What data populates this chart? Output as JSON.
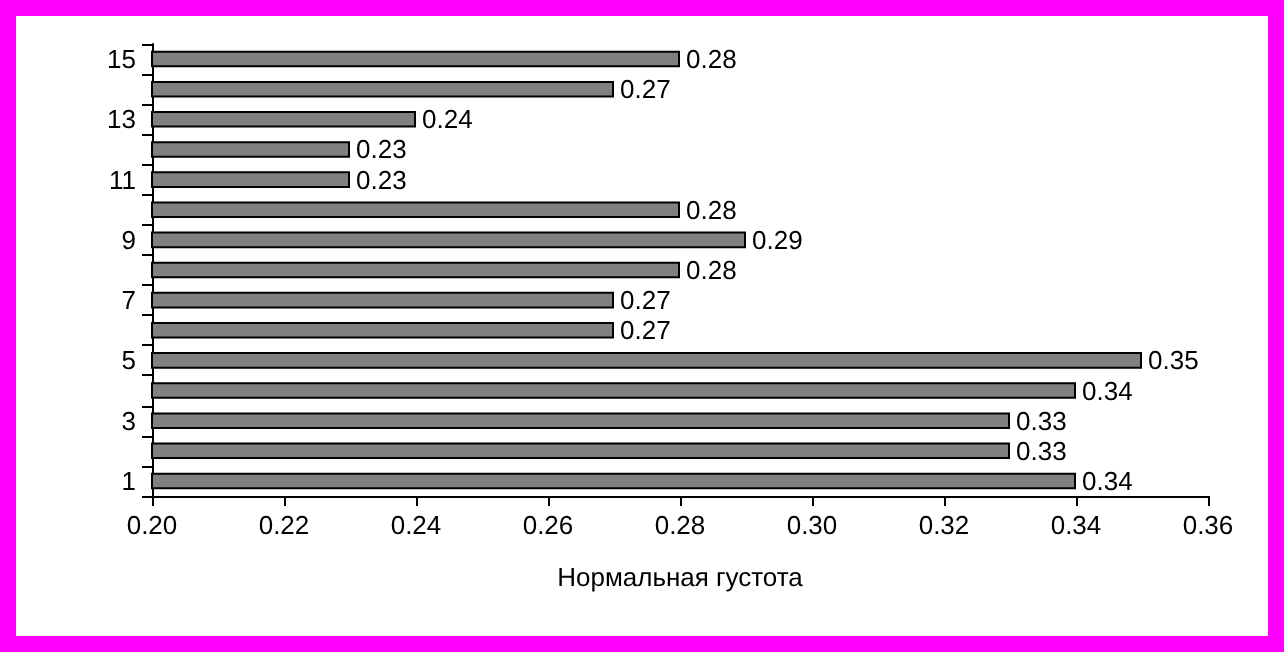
{
  "chart_data": {
    "type": "bar",
    "orientation": "horizontal",
    "xlabel": "Нормальная густота",
    "categories": [
      "15",
      null,
      "13",
      null,
      "11",
      null,
      "9",
      null,
      "7",
      null,
      "5",
      null,
      "3",
      null,
      "1"
    ],
    "values": [
      0.28,
      0.27,
      0.24,
      0.23,
      0.23,
      0.28,
      0.29,
      0.28,
      0.27,
      0.27,
      0.35,
      0.34,
      0.33,
      0.33,
      0.34
    ],
    "color": "#808080",
    "data_labels": true,
    "grid": false,
    "xlim": [
      0.2,
      0.36
    ],
    "xticks": [
      {
        "value": 0.2,
        "label": "0.20"
      },
      {
        "value": 0.22,
        "label": "0.22"
      },
      {
        "value": 0.24,
        "label": "0.24"
      },
      {
        "value": 0.26,
        "label": "0.26"
      },
      {
        "value": 0.28,
        "label": "0.28"
      },
      {
        "value": 0.3,
        "label": "0.30"
      },
      {
        "value": 0.32,
        "label": "0.32"
      },
      {
        "value": 0.34,
        "label": "0.34"
      },
      {
        "value": 0.36,
        "label": "0.36"
      }
    ]
  }
}
